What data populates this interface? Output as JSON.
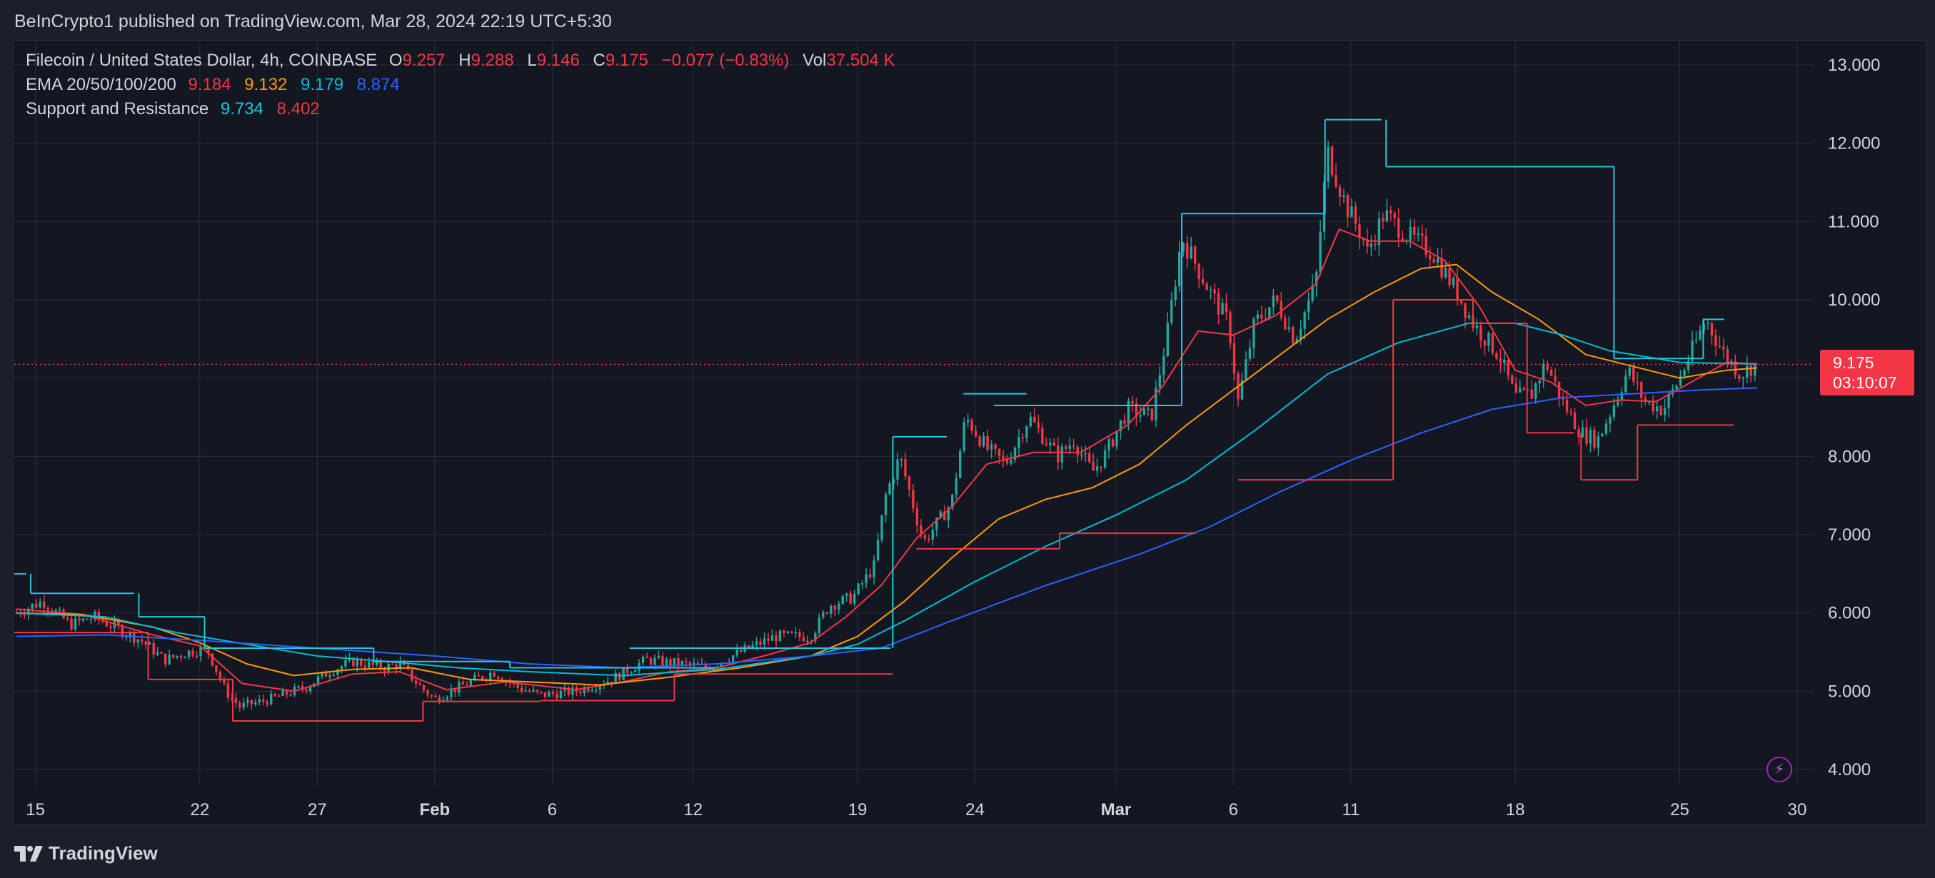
{
  "header": {
    "published": "BeInCrypto1 published on TradingView.com, Mar 28, 2024 22:19 UTC+5:30"
  },
  "legend": {
    "symbol": "Filecoin / United States Dollar, 4h, COINBASE",
    "o_label": "O",
    "o": "9.257",
    "h_label": "H",
    "h": "9.288",
    "l_label": "L",
    "l": "9.146",
    "c_label": "C",
    "c": "9.175",
    "change": "−0.077 (−0.83%)",
    "vol_label": "Vol",
    "vol": "37.504 K",
    "ema_label": "EMA 20/50/100/200",
    "ema20": "9.184",
    "ema50": "9.132",
    "ema100": "9.179",
    "ema200": "8.874",
    "sr_label": "Support and Resistance",
    "sr_res": "9.734",
    "sr_sup": "8.402"
  },
  "price_badge": {
    "price": "9.175",
    "countdown": "03:10:07"
  },
  "footer": {
    "brand": "TradingView"
  },
  "colors": {
    "up": "#26a69a",
    "down": "#f23645",
    "ema20": "#f23645",
    "ema50": "#ff9800",
    "ema100": "#00bcd4",
    "ema200": "#2962ff",
    "resistance": "#26c6da",
    "support": "#f23645",
    "text": "#d1d4dc",
    "grid": "#2a2e39"
  },
  "icons": {
    "logo": "tradingview-logo-icon",
    "bolt": "lightning-bolt-icon"
  },
  "chart_data": {
    "type": "candlestick",
    "title": "Filecoin / United States Dollar, 4h, COINBASE",
    "y_axis": {
      "ticks": [
        "4.000",
        "5.000",
        "6.000",
        "7.000",
        "8.000",
        "9.000",
        "10.000",
        "11.000",
        "12.000",
        "13.000"
      ],
      "range": [
        3.8,
        13.3
      ],
      "position": "right"
    },
    "x_axis": {
      "ticks": [
        {
          "label": "15",
          "day": 15
        },
        {
          "label": "22",
          "day": 22
        },
        {
          "label": "27",
          "day": 27
        },
        {
          "label": "Feb",
          "day": 32,
          "bold": true
        },
        {
          "label": "6",
          "day": 37
        },
        {
          "label": "12",
          "day": 43
        },
        {
          "label": "19",
          "day": 50
        },
        {
          "label": "24",
          "day": 55
        },
        {
          "label": "Mar",
          "day": 61,
          "bold": true
        },
        {
          "label": "6",
          "day": 66
        },
        {
          "label": "11",
          "day": 71
        },
        {
          "label": "18",
          "day": 78
        },
        {
          "label": "25",
          "day": 85
        },
        {
          "label": "30",
          "day": 90
        }
      ],
      "range": [
        14.1,
        90.7
      ],
      "unit": "day (Jan 1 = 1)"
    },
    "grid": true,
    "last_price": 9.175,
    "price_key_points": [
      [
        14.2,
        6.0
      ],
      [
        15.3,
        6.15
      ],
      [
        16.5,
        5.85
      ],
      [
        17.5,
        5.95
      ],
      [
        18.5,
        5.8
      ],
      [
        19.5,
        5.65
      ],
      [
        20.5,
        5.4
      ],
      [
        21.5,
        5.5
      ],
      [
        22.3,
        5.55
      ],
      [
        23.1,
        5.0
      ],
      [
        23.7,
        4.8
      ],
      [
        25.0,
        4.9
      ],
      [
        26.5,
        5.05
      ],
      [
        27.5,
        5.25
      ],
      [
        28.5,
        5.38
      ],
      [
        29.8,
        5.3
      ],
      [
        30.5,
        5.35
      ],
      [
        31.4,
        5.05
      ],
      [
        32.0,
        4.9
      ],
      [
        33.0,
        5.05
      ],
      [
        34.5,
        5.25
      ],
      [
        35.5,
        5.05
      ],
      [
        36.5,
        4.95
      ],
      [
        38.0,
        5.0
      ],
      [
        39.5,
        5.15
      ],
      [
        41.0,
        5.4
      ],
      [
        42.5,
        5.35
      ],
      [
        43.6,
        5.3
      ],
      [
        45.0,
        5.5
      ],
      [
        46.5,
        5.7
      ],
      [
        48.0,
        5.7
      ],
      [
        48.8,
        6.1
      ],
      [
        49.8,
        6.2
      ],
      [
        50.7,
        6.6
      ],
      [
        51.2,
        7.5
      ],
      [
        51.8,
        8.0
      ],
      [
        52.8,
        6.9
      ],
      [
        54.0,
        7.4
      ],
      [
        54.6,
        8.5
      ],
      [
        55.5,
        8.1
      ],
      [
        56.3,
        7.9
      ],
      [
        57.3,
        8.5
      ],
      [
        58.5,
        8.0
      ],
      [
        59.2,
        8.2
      ],
      [
        60.0,
        7.8
      ],
      [
        60.5,
        8.0
      ],
      [
        61.5,
        8.6
      ],
      [
        62.5,
        8.5
      ],
      [
        63.2,
        9.6
      ],
      [
        63.8,
        10.8
      ],
      [
        65.0,
        10.1
      ],
      [
        65.8,
        9.7
      ],
      [
        66.2,
        8.7
      ],
      [
        66.9,
        9.7
      ],
      [
        67.8,
        10.0
      ],
      [
        68.6,
        9.5
      ],
      [
        69.5,
        10.2
      ],
      [
        70.0,
        11.9
      ],
      [
        70.8,
        11.2
      ],
      [
        71.5,
        10.8
      ],
      [
        71.7,
        10.6
      ],
      [
        72.4,
        11.1
      ],
      [
        73.5,
        10.8
      ],
      [
        74.5,
        10.6
      ],
      [
        75.5,
        10.1
      ],
      [
        76.2,
        9.7
      ],
      [
        77.3,
        9.3
      ],
      [
        78.0,
        8.75
      ],
      [
        78.7,
        8.8
      ],
      [
        79.3,
        9.2
      ],
      [
        80.0,
        8.7
      ],
      [
        80.8,
        8.3
      ],
      [
        81.5,
        8.2
      ],
      [
        82.1,
        8.6
      ],
      [
        82.8,
        9.1
      ],
      [
        83.5,
        8.7
      ],
      [
        84.3,
        8.6
      ],
      [
        85.0,
        9.0
      ],
      [
        85.6,
        9.4
      ],
      [
        86.1,
        9.75
      ],
      [
        86.9,
        9.3
      ],
      [
        87.6,
        9.05
      ],
      [
        88.3,
        9.2
      ]
    ],
    "series": [
      {
        "name": "EMA 20",
        "color": "#f23645",
        "values": [
          [
            14.2,
            6.05
          ],
          [
            17,
            5.98
          ],
          [
            20,
            5.72
          ],
          [
            22,
            5.58
          ],
          [
            23.8,
            5.1
          ],
          [
            26,
            5.0
          ],
          [
            28.5,
            5.22
          ],
          [
            30.5,
            5.25
          ],
          [
            32.5,
            5.02
          ],
          [
            35,
            5.12
          ],
          [
            38,
            5.02
          ],
          [
            40,
            5.12
          ],
          [
            42,
            5.25
          ],
          [
            44,
            5.3
          ],
          [
            46,
            5.45
          ],
          [
            48,
            5.62
          ],
          [
            49.5,
            5.95
          ],
          [
            51,
            6.35
          ],
          [
            52.5,
            6.95
          ],
          [
            54,
            7.35
          ],
          [
            55.5,
            7.9
          ],
          [
            57.5,
            8.05
          ],
          [
            59.5,
            8.05
          ],
          [
            61.5,
            8.4
          ],
          [
            63,
            8.9
          ],
          [
            64.5,
            9.6
          ],
          [
            66,
            9.55
          ],
          [
            67.8,
            9.8
          ],
          [
            69.5,
            10.2
          ],
          [
            70.5,
            10.9
          ],
          [
            71.8,
            10.75
          ],
          [
            73.5,
            10.75
          ],
          [
            75,
            10.5
          ],
          [
            76.5,
            9.9
          ],
          [
            78,
            9.1
          ],
          [
            79.5,
            8.95
          ],
          [
            81,
            8.65
          ],
          [
            82.5,
            8.72
          ],
          [
            84,
            8.7
          ],
          [
            85.5,
            8.95
          ],
          [
            87,
            9.2
          ],
          [
            88.3,
            9.18
          ]
        ]
      },
      {
        "name": "EMA 50",
        "color": "#ff9800",
        "values": [
          [
            14.2,
            6.0
          ],
          [
            17,
            5.98
          ],
          [
            20,
            5.82
          ],
          [
            22,
            5.62
          ],
          [
            24,
            5.35
          ],
          [
            26,
            5.2
          ],
          [
            28.5,
            5.28
          ],
          [
            31,
            5.3
          ],
          [
            33.5,
            5.15
          ],
          [
            36,
            5.12
          ],
          [
            39,
            5.08
          ],
          [
            42,
            5.18
          ],
          [
            45,
            5.3
          ],
          [
            48,
            5.45
          ],
          [
            50,
            5.7
          ],
          [
            52,
            6.15
          ],
          [
            54,
            6.7
          ],
          [
            56,
            7.2
          ],
          [
            58,
            7.45
          ],
          [
            60,
            7.6
          ],
          [
            62,
            7.9
          ],
          [
            64,
            8.4
          ],
          [
            66,
            8.85
          ],
          [
            68,
            9.3
          ],
          [
            70,
            9.75
          ],
          [
            72,
            10.1
          ],
          [
            74,
            10.4
          ],
          [
            75.5,
            10.45
          ],
          [
            77,
            10.1
          ],
          [
            79,
            9.75
          ],
          [
            81,
            9.3
          ],
          [
            83,
            9.15
          ],
          [
            85,
            9.0
          ],
          [
            87,
            9.1
          ],
          [
            88.3,
            9.13
          ]
        ]
      },
      {
        "name": "EMA 100",
        "color": "#00bcd4",
        "values": [
          [
            14.2,
            6.0
          ],
          [
            18,
            5.95
          ],
          [
            21,
            5.75
          ],
          [
            24,
            5.6
          ],
          [
            27,
            5.45
          ],
          [
            30,
            5.38
          ],
          [
            33,
            5.3
          ],
          [
            36,
            5.25
          ],
          [
            40,
            5.2
          ],
          [
            44,
            5.28
          ],
          [
            48,
            5.45
          ],
          [
            50,
            5.6
          ],
          [
            52,
            5.9
          ],
          [
            55,
            6.4
          ],
          [
            58,
            6.85
          ],
          [
            61,
            7.25
          ],
          [
            64,
            7.7
          ],
          [
            67,
            8.35
          ],
          [
            70,
            9.05
          ],
          [
            73,
            9.45
          ],
          [
            76,
            9.7
          ],
          [
            78,
            9.7
          ],
          [
            80,
            9.55
          ],
          [
            82,
            9.35
          ],
          [
            85,
            9.2
          ],
          [
            88.3,
            9.18
          ]
        ]
      },
      {
        "name": "EMA 200",
        "color": "#2962ff",
        "values": [
          [
            14.2,
            5.7
          ],
          [
            18,
            5.72
          ],
          [
            22,
            5.65
          ],
          [
            27,
            5.55
          ],
          [
            32,
            5.45
          ],
          [
            36,
            5.35
          ],
          [
            40,
            5.3
          ],
          [
            44,
            5.35
          ],
          [
            48,
            5.45
          ],
          [
            51,
            5.55
          ],
          [
            54,
            5.9
          ],
          [
            58,
            6.35
          ],
          [
            62,
            6.75
          ],
          [
            65,
            7.1
          ],
          [
            68,
            7.55
          ],
          [
            71,
            7.95
          ],
          [
            74,
            8.3
          ],
          [
            77,
            8.6
          ],
          [
            80,
            8.75
          ],
          [
            83,
            8.8
          ],
          [
            86,
            8.85
          ],
          [
            88.3,
            8.874
          ]
        ]
      }
    ],
    "resistance_levels": [
      {
        "x": [
          14.1,
          14.6
        ],
        "y": 6.5
      },
      {
        "x": [
          14.8,
          19.2
        ],
        "y": 6.25
      },
      {
        "x": [
          19.4,
          22.2
        ],
        "y": 5.95
      },
      {
        "x": [
          22.2,
          29.4
        ],
        "y": 5.55
      },
      {
        "x": [
          29.4,
          35.2
        ],
        "y": 5.38
      },
      {
        "x": [
          35.2,
          44.0
        ],
        "y": 5.3
      },
      {
        "x": [
          40.3,
          51.4
        ],
        "y": 5.55
      },
      {
        "x": [
          51.5,
          53.8
        ],
        "y": 8.25
      },
      {
        "x": [
          54.5,
          57.2
        ],
        "y": 8.8
      },
      {
        "x": [
          55.8,
          63.8
        ],
        "y": 8.65
      },
      {
        "x": [
          63.8,
          69.9
        ],
        "y": 11.1
      },
      {
        "x": [
          69.9,
          72.3
        ],
        "y": 12.3
      },
      {
        "x": [
          72.5,
          82.2
        ],
        "y": 11.7
      },
      {
        "x": [
          82.2,
          86.0
        ],
        "y": 9.25
      },
      {
        "x": [
          86.0,
          86.9
        ],
        "y": 9.75
      }
    ],
    "support_levels": [
      {
        "x": [
          14.1,
          19.8
        ],
        "y": 5.75
      },
      {
        "x": [
          19.8,
          23.4
        ],
        "y": 5.15
      },
      {
        "x": [
          23.4,
          31.5
        ],
        "y": 4.62
      },
      {
        "x": [
          31.5,
          36.5
        ],
        "y": 4.87
      },
      {
        "x": [
          36.5,
          42.2
        ],
        "y": 4.88
      },
      {
        "x": [
          42.2,
          51.5
        ],
        "y": 5.22
      },
      {
        "x": [
          52.5,
          58.6
        ],
        "y": 6.82
      },
      {
        "x": [
          58.6,
          64.4
        ],
        "y": 7.02
      },
      {
        "x": [
          66.2,
          72.8
        ],
        "y": 7.7
      },
      {
        "x": [
          72.8,
          76.2
        ],
        "y": 10.0
      },
      {
        "x": [
          76.2,
          78.5
        ],
        "y": 9.7
      },
      {
        "x": [
          78.5,
          80.5
        ],
        "y": 8.3
      },
      {
        "x": [
          80.8,
          83.2
        ],
        "y": 7.7
      },
      {
        "x": [
          83.2,
          87.3
        ],
        "y": 8.4
      }
    ],
    "candles_per_day": 6
  }
}
